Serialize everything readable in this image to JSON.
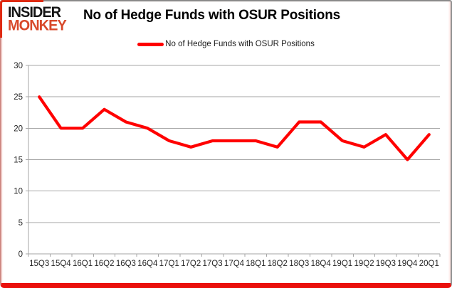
{
  "logo": {
    "line1": "INSIDER",
    "line2": "MONKEY"
  },
  "header": {
    "title": "No of Hedge Funds with OSUR Positions"
  },
  "legend": {
    "label": "No of Hedge Funds with OSUR Positions"
  },
  "colors": {
    "series_red": "#ff0000",
    "logo_monkey": "#d8492b",
    "frame_bottom_red": "#ea100c",
    "grid_gray": "#a6a6a6",
    "tick_text": "#262626"
  },
  "chart_data": {
    "type": "line",
    "title": "No of Hedge Funds with OSUR Positions",
    "categories": [
      "15Q3",
      "15Q4",
      "16Q1",
      "16Q2",
      "16Q3",
      "16Q4",
      "17Q1",
      "17Q2",
      "17Q3",
      "17Q4",
      "18Q1",
      "18Q2",
      "18Q3",
      "18Q4",
      "19Q1",
      "19Q2",
      "19Q3",
      "19Q4",
      "20Q1"
    ],
    "series": [
      {
        "name": "No of Hedge Funds with OSUR Positions",
        "color": "#ff0000",
        "values": [
          25,
          20,
          20,
          23,
          21,
          20,
          18,
          17,
          18,
          18,
          18,
          17,
          21,
          21,
          18,
          17,
          19,
          15,
          19
        ]
      }
    ],
    "xlabel": "",
    "ylabel": "",
    "ylim": [
      0,
      30
    ],
    "ytick_interval": 5,
    "grid": true,
    "legend_position": "top-center"
  }
}
